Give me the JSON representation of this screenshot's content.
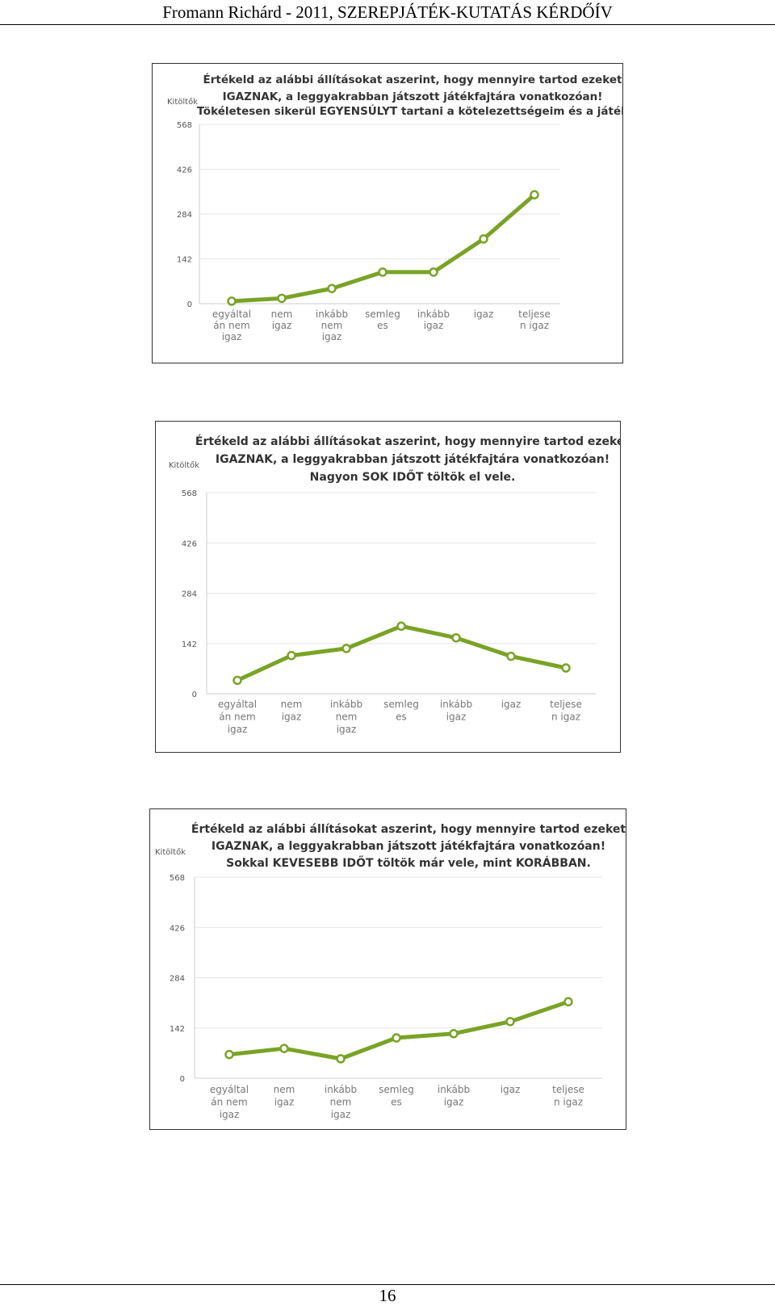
{
  "header": {
    "title": "Fromann Richárd - 2011, SZEREPJÁTÉK-KUTATÁS KÉRDŐÍV"
  },
  "footer": {
    "page_number": "16"
  },
  "colors": {
    "line": "#7aa326",
    "grid": "#e6e6e6",
    "axis": "#cccccc"
  },
  "chart_data": [
    {
      "type": "line",
      "title_lines": [
        "Értékeld az alábbi állításokat aszerint, hogy mennyire tartod ezeket",
        "IGAZNAK, a leggyakrabban játszott játékfajtára vonatkozóan!",
        "Tökéletesen sikerül EGYENSÚLYT tartani a kötelezettségeim és a játék"
      ],
      "ylabel": "Kitöltők",
      "ylim": [
        0,
        568
      ],
      "yticks": [
        "568",
        "426",
        "284",
        "142",
        "0"
      ],
      "grid": true,
      "categories": [
        [
          "egyáltal",
          "án nem",
          "igaz"
        ],
        [
          "nem",
          "igaz"
        ],
        [
          "inkább",
          "nem",
          "igaz"
        ],
        [
          "semleg",
          "es"
        ],
        [
          "inkább",
          "igaz"
        ],
        [
          "igaz"
        ],
        [
          "teljese",
          "n igaz"
        ]
      ],
      "values": [
        8,
        17,
        48,
        100,
        100,
        205,
        345
      ]
    },
    {
      "type": "line",
      "title_lines": [
        "Értékeld az alábbi állításokat aszerint, hogy mennyire tartod ezeket",
        "IGAZNAK, a leggyakrabban játszott játékfajtára vonatkozóan!",
        "Nagyon SOK IDŐT töltök el vele."
      ],
      "ylabel": "Kitöltők",
      "ylim": [
        0,
        568
      ],
      "yticks": [
        "568",
        "426",
        "284",
        "142",
        "0"
      ],
      "grid": true,
      "categories": [
        [
          "egyáltal",
          "án nem",
          "igaz"
        ],
        [
          "nem",
          "igaz"
        ],
        [
          "inkább",
          "nem",
          "igaz"
        ],
        [
          "semleg",
          "es"
        ],
        [
          "inkább",
          "igaz"
        ],
        [
          "igaz"
        ],
        [
          "teljese",
          "n igaz"
        ]
      ],
      "values": [
        38,
        108,
        128,
        191,
        158,
        106,
        73
      ]
    },
    {
      "type": "line",
      "title_lines": [
        "Értékeld az alábbi állításokat aszerint, hogy mennyire tartod ezeket",
        "IGAZNAK, a leggyakrabban játszott játékfajtára vonatkozóan!",
        "Sokkal KEVESEBB IDŐT töltök már vele, mint KORÁBBAN."
      ],
      "ylabel": "Kitöltők",
      "ylim": [
        0,
        568
      ],
      "yticks": [
        "568",
        "426",
        "284",
        "142",
        "0"
      ],
      "grid": true,
      "categories": [
        [
          "egyáltal",
          "án nem",
          "igaz"
        ],
        [
          "nem",
          "igaz"
        ],
        [
          "inkább",
          "nem",
          "igaz"
        ],
        [
          "semleg",
          "es"
        ],
        [
          "inkább",
          "igaz"
        ],
        [
          "igaz"
        ],
        [
          "teljese",
          "n igaz"
        ]
      ],
      "values": [
        67,
        84,
        55,
        114,
        126,
        160,
        216
      ]
    }
  ]
}
